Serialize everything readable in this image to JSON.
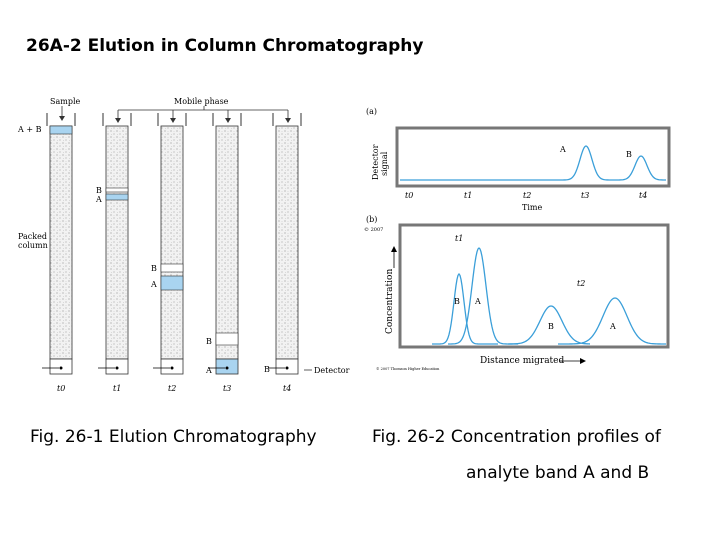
{
  "slide": {
    "title": "26A-2 Elution in Column Chromatography",
    "caption_left": "Fig. 26-1 Elution Chromatography",
    "caption_right_line1": "Fig. 26-2 Concentration profiles of",
    "caption_right_line2": "analyte band A and B"
  },
  "figure_left": {
    "label_sample": "Sample",
    "label_mobile_phase": "Mobile phase",
    "label_a_plus_b": "A + B",
    "label_packed_column_1": "Packed",
    "label_packed_column_2": "column",
    "label_detector": "Detector",
    "band_b": "B",
    "band_a": "A",
    "times": [
      "t0",
      "t1",
      "t2",
      "t3",
      "t4"
    ]
  },
  "figure_right": {
    "panel_a_label": "(a)",
    "panel_b_label": "(b)",
    "copyright": "© 2007",
    "ylabel_a_1": "Detector",
    "ylabel_a_2": "signal",
    "xlabel_a": "Time",
    "peak_a": "A",
    "peak_b": "B",
    "time_ticks": [
      "t0",
      "t1",
      "t2",
      "t3",
      "t4"
    ],
    "ylabel_b": "Concentration",
    "xlabel_b": "Distance migrated",
    "t1_label": "t1",
    "t2_label": "t2",
    "credit": "© 2007 Thomson Higher Education"
  },
  "colors": {
    "band_fill": "#a9d4f0",
    "curve": "#3b9fd9",
    "frame": "#555555"
  }
}
